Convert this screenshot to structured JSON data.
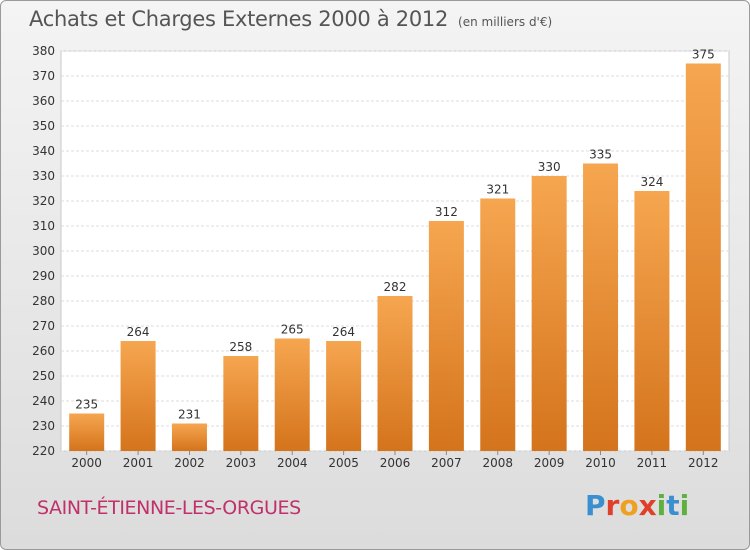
{
  "header": {
    "title": "Achats et Charges Externes 2000 à 2012",
    "subtitle": "(en milliers d'€)"
  },
  "footer": {
    "commune": "SAINT-ÉTIENNE-LES-ORGUES",
    "logo_text": "Proxiti"
  },
  "colors": {
    "bar_top": "#f6a650",
    "bar_bottom": "#d4741c",
    "title": "#555555",
    "commune": "#c0306a"
  },
  "chart_data": {
    "type": "bar",
    "title": "Achats et Charges Externes 2000 à 2012",
    "subtitle": "(en milliers d'€)",
    "categories": [
      "2000",
      "2001",
      "2002",
      "2003",
      "2004",
      "2005",
      "2006",
      "2007",
      "2008",
      "2009",
      "2010",
      "2011",
      "2012"
    ],
    "values": [
      235,
      264,
      231,
      258,
      265,
      264,
      282,
      312,
      321,
      330,
      335,
      324,
      375
    ],
    "xlabel": "",
    "ylabel": "",
    "ylim": [
      220,
      380
    ],
    "yticks": [
      220,
      230,
      240,
      250,
      260,
      270,
      280,
      290,
      300,
      310,
      320,
      330,
      340,
      350,
      360,
      370,
      380
    ],
    "grid": true,
    "data_labels": true
  }
}
